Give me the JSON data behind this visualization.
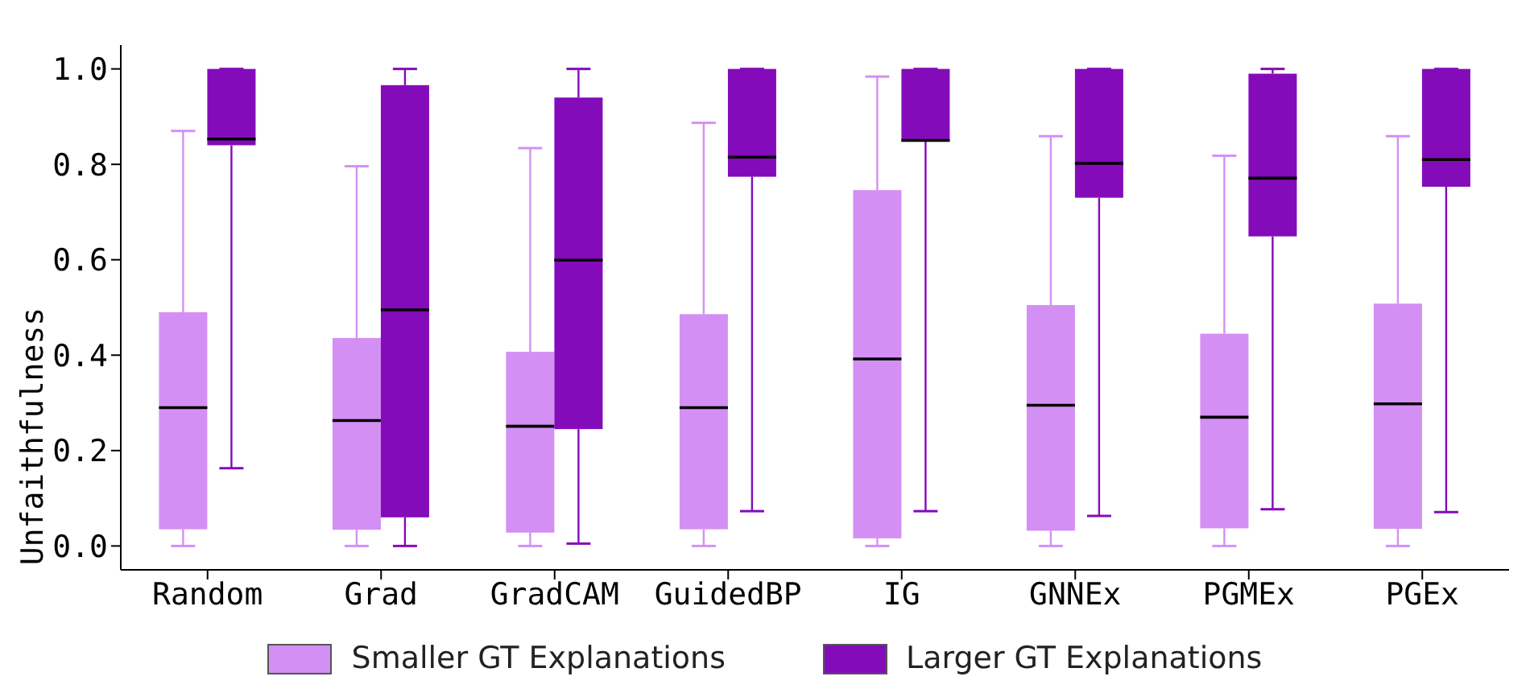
{
  "chart_data": {
    "type": "box",
    "ylabel": "Unfaithfulness",
    "categories": [
      "Random",
      "Grad",
      "GradCAM",
      "GuidedBP",
      "IG",
      "GNNEx",
      "PGMEx",
      "PGEx"
    ],
    "ylim": [
      -0.05,
      1.05
    ],
    "yticks": [
      {
        "value": 0,
        "label": "0.0"
      },
      {
        "value": 0.2,
        "label": "0.2"
      },
      {
        "value": 0.4,
        "label": "0.4"
      },
      {
        "value": 0.6,
        "label": "0.6"
      },
      {
        "value": 0.8,
        "label": "0.8"
      },
      {
        "value": 1,
        "label": "1.0"
      }
    ],
    "grid": false,
    "legend": "bottom",
    "series": [
      {
        "name": "Smaller GT Explanations",
        "color": "#d48ff5",
        "boxes": [
          {
            "low": 0,
            "q1": 0.035,
            "median": 0.29,
            "q3": 0.49,
            "high": 0.87
          },
          {
            "low": 0,
            "q1": 0.034,
            "median": 0.263,
            "q3": 0.436,
            "high": 0.796
          },
          {
            "low": 0,
            "q1": 0.028,
            "median": 0.251,
            "q3": 0.407,
            "high": 0.834
          },
          {
            "low": 0,
            "q1": 0.035,
            "median": 0.29,
            "q3": 0.486,
            "high": 0.887
          },
          {
            "low": 0,
            "q1": 0.016,
            "median": 0.392,
            "q3": 0.746,
            "high": 0.984
          },
          {
            "low": 0,
            "q1": 0.032,
            "median": 0.295,
            "q3": 0.505,
            "high": 0.859
          },
          {
            "low": 0,
            "q1": 0.037,
            "median": 0.27,
            "q3": 0.445,
            "high": 0.818
          },
          {
            "low": 0,
            "q1": 0.036,
            "median": 0.298,
            "q3": 0.508,
            "high": 0.859
          }
        ]
      },
      {
        "name": "Larger GT Explanations",
        "color": "#840bba",
        "boxes": [
          {
            "low": 0.163,
            "q1": 0.84,
            "median": 0.853,
            "q3": 1,
            "high": 1
          },
          {
            "low": 0,
            "q1": 0.06,
            "median": 0.495,
            "q3": 0.966,
            "high": 1
          },
          {
            "low": 0.005,
            "q1": 0.245,
            "median": 0.599,
            "q3": 0.94,
            "high": 1
          },
          {
            "low": 0.073,
            "q1": 0.774,
            "median": 0.815,
            "q3": 1,
            "high": 1
          },
          {
            "low": 0.073,
            "q1": 0.848,
            "median": 0.85,
            "q3": 1,
            "high": 1
          },
          {
            "low": 0.063,
            "q1": 0.73,
            "median": 0.802,
            "q3": 1,
            "high": 1
          },
          {
            "low": 0.077,
            "q1": 0.649,
            "median": 0.771,
            "q3": 0.99,
            "high": 1
          },
          {
            "low": 0.071,
            "q1": 0.753,
            "median": 0.81,
            "q3": 1,
            "high": 1
          }
        ]
      }
    ]
  }
}
